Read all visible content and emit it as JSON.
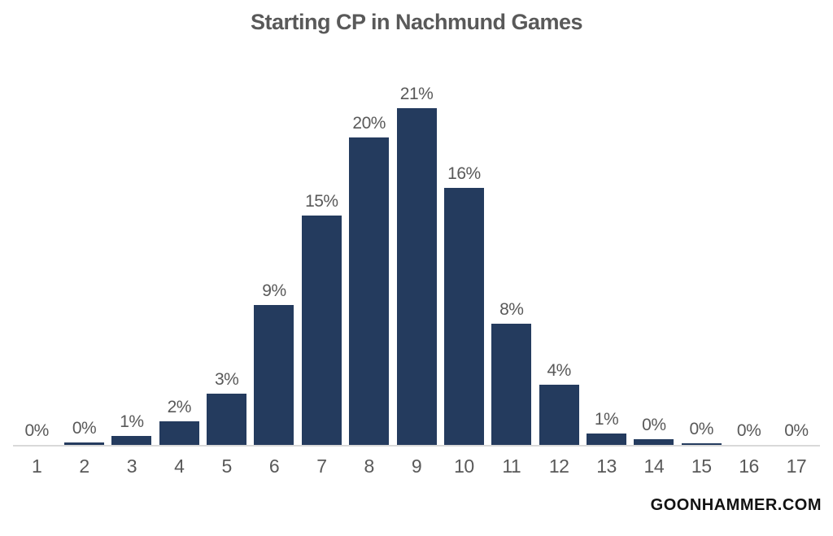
{
  "chart_data": {
    "type": "bar",
    "title": "Starting CP in Nachmund Games",
    "categories": [
      "1",
      "2",
      "3",
      "4",
      "5",
      "6",
      "7",
      "8",
      "9",
      "10",
      "11",
      "12",
      "13",
      "14",
      "15",
      "16",
      "17"
    ],
    "values": [
      0,
      0,
      1,
      2,
      3,
      9,
      15,
      20,
      21,
      16,
      8,
      4,
      1,
      0,
      0,
      0,
      0
    ],
    "value_labels": [
      "0%",
      "0%",
      "1%",
      "2%",
      "3%",
      "9%",
      "15%",
      "20%",
      "21%",
      "16%",
      "8%",
      "4%",
      "1%",
      "0%",
      "0%",
      "0%",
      "0%"
    ],
    "estimated_raw_pct": [
      0,
      0.15,
      0.55,
      1.5,
      3.2,
      8.8,
      14.4,
      19.3,
      21.1,
      16.1,
      7.6,
      3.8,
      0.7,
      0.35,
      0.1,
      0,
      0
    ],
    "xlabel": "",
    "ylabel": "",
    "ylim": [
      0,
      22
    ],
    "grid": false,
    "legend": false,
    "bar_color": "#243B5E",
    "label_color": "#595959",
    "title_color": "#595959",
    "axis_line_color": "#D9D9D9",
    "watermark": "GOONHAMMER.COM",
    "watermark_color": "#121212"
  }
}
